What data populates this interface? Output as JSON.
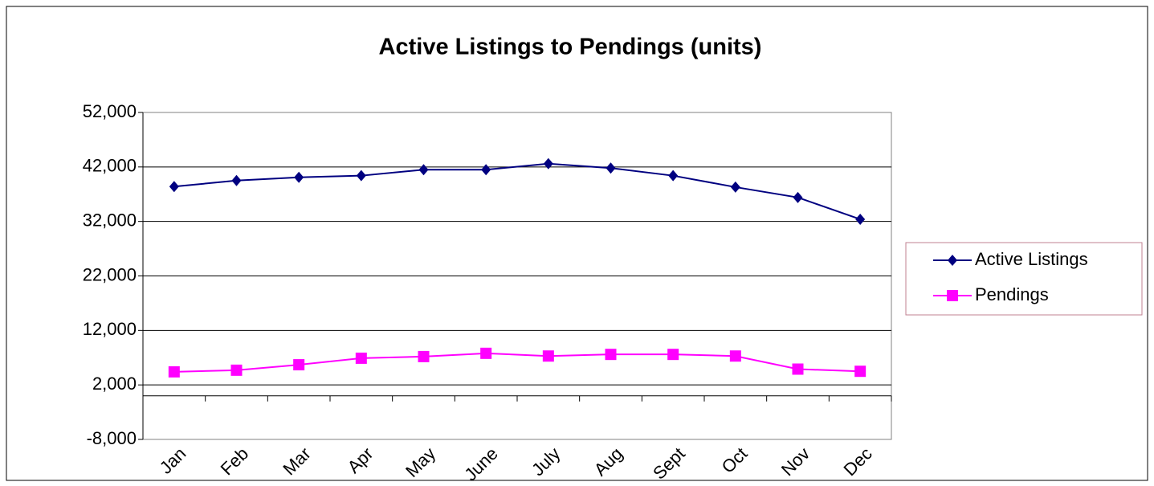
{
  "chart_data": {
    "type": "line",
    "title": "Active Listings to Pendings (units)",
    "categories": [
      "Jan",
      "Feb",
      "Mar",
      "Apr",
      "May",
      "June",
      "July",
      "Aug",
      "Sept",
      "Oct",
      "Nov",
      "Dec"
    ],
    "series": [
      {
        "name": "Active Listings",
        "color": "#000080",
        "marker": "diamond",
        "values": [
          38400,
          39500,
          40100,
          40400,
          41500,
          41500,
          42600,
          41800,
          40400,
          38300,
          36400,
          32400
        ]
      },
      {
        "name": "Pendings",
        "color": "#ff00ff",
        "marker": "square",
        "values": [
          4400,
          4700,
          5700,
          6900,
          7200,
          7800,
          7300,
          7600,
          7600,
          7300,
          4900,
          4500
        ]
      }
    ],
    "ylim": [
      -8000,
      52000
    ],
    "yticks": [
      {
        "value": -8000,
        "label": "-8,000"
      },
      {
        "value": 2000,
        "label": "2,000"
      },
      {
        "value": 12000,
        "label": "12,000"
      },
      {
        "value": 22000,
        "label": "22,000"
      },
      {
        "value": 32000,
        "label": "32,000"
      },
      {
        "value": 42000,
        "label": "42,000"
      },
      {
        "value": 52000,
        "label": "52,000"
      }
    ],
    "grid": true,
    "legend": "right"
  }
}
